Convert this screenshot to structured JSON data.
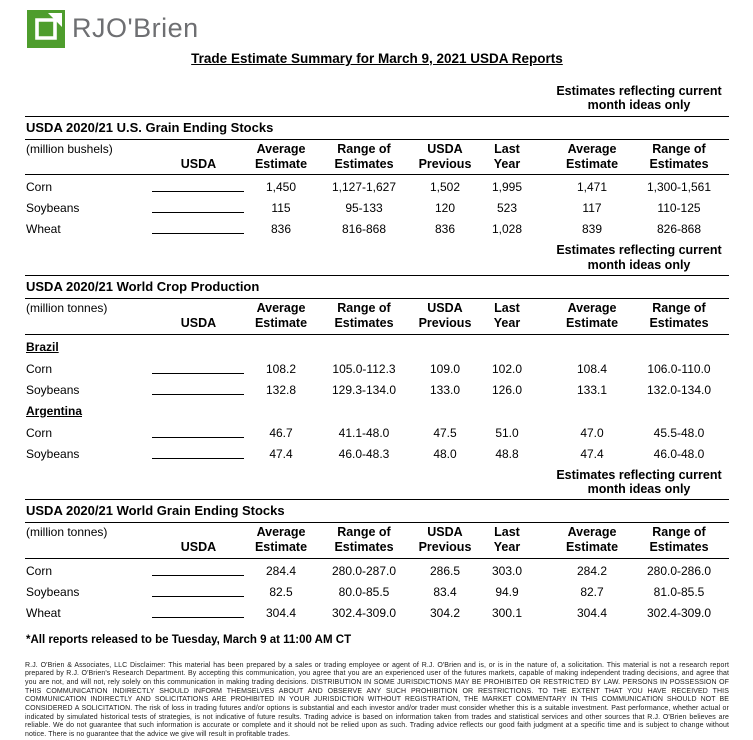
{
  "brand": {
    "name": "RJO'Brien",
    "logo_color": "#4e9d2d"
  },
  "title": "Trade Estimate Summary for March 9, 2021 USDA Reports",
  "current_month_header": [
    "Estimates reflecting current",
    "month ideas only"
  ],
  "main_headers": {
    "usda": "USDA",
    "cols": [
      [
        "Average",
        "Estimate"
      ],
      [
        "Range of",
        "Estimates"
      ],
      [
        "USDA",
        "Previous"
      ],
      [
        "Last",
        "Year"
      ]
    ]
  },
  "current_headers": [
    [
      "Average",
      "Estimate"
    ],
    [
      "Range of",
      "Estimates"
    ]
  ],
  "tables": [
    {
      "title": "USDA 2020/21 U.S. Grain Ending Stocks",
      "unit": "(million bushels)",
      "groups": [
        {
          "name": null,
          "rows": [
            {
              "label": "Corn",
              "avg": "1,450",
              "range": "1,127-1,627",
              "prev": "1,502",
              "last": "1,995",
              "cur_avg": "1,471",
              "cur_range": "1,300-1,561"
            },
            {
              "label": "Soybeans",
              "avg": "115",
              "range": "95-133",
              "prev": "120",
              "last": "523",
              "cur_avg": "117",
              "cur_range": "110-125"
            },
            {
              "label": "Wheat",
              "avg": "836",
              "range": "816-868",
              "prev": "836",
              "last": "1,028",
              "cur_avg": "839",
              "cur_range": "826-868"
            }
          ]
        }
      ]
    },
    {
      "title": "USDA 2020/21 World Crop Production",
      "unit": "(million tonnes)",
      "groups": [
        {
          "name": "Brazil",
          "rows": [
            {
              "label": "Corn",
              "avg": "108.2",
              "range": "105.0-112.3",
              "prev": "109.0",
              "last": "102.0",
              "cur_avg": "108.4",
              "cur_range": "106.0-110.0"
            },
            {
              "label": "Soybeans",
              "avg": "132.8",
              "range": "129.3-134.0",
              "prev": "133.0",
              "last": "126.0",
              "cur_avg": "133.1",
              "cur_range": "132.0-134.0"
            }
          ]
        },
        {
          "name": "Argentina",
          "rows": [
            {
              "label": "Corn",
              "avg": "46.7",
              "range": "41.1-48.0",
              "prev": "47.5",
              "last": "51.0",
              "cur_avg": "47.0",
              "cur_range": "45.5-48.0"
            },
            {
              "label": "Soybeans",
              "avg": "47.4",
              "range": "46.0-48.3",
              "prev": "48.0",
              "last": "48.8",
              "cur_avg": "47.4",
              "cur_range": "46.0-48.0"
            }
          ]
        }
      ]
    },
    {
      "title": "USDA 2020/21 World Grain Ending Stocks",
      "unit": "(million tonnes)",
      "groups": [
        {
          "name": null,
          "rows": [
            {
              "label": "Corn",
              "avg": "284.4",
              "range": "280.0-287.0",
              "prev": "286.5",
              "last": "303.0",
              "cur_avg": "284.2",
              "cur_range": "280.0-286.0"
            },
            {
              "label": "Soybeans",
              "avg": "82.5",
              "range": "80.0-85.5",
              "prev": "83.4",
              "last": "94.9",
              "cur_avg": "82.7",
              "cur_range": "81.0-85.5"
            },
            {
              "label": "Wheat",
              "avg": "304.4",
              "range": "302.4-309.0",
              "prev": "304.2",
              "last": "300.1",
              "cur_avg": "304.4",
              "cur_range": "302.4-309.0"
            }
          ]
        }
      ]
    }
  ],
  "footnote": "*All reports released to be Tuesday, March 9 at 11:00 AM CT",
  "disclaimer": "R.J. O'Brien & Associates, LLC Disclaimer: This material has been prepared by a sales or trading employee or agent of R.J. O'Brien and is, or is in the nature of, a solicitation. This material is not a research report prepared by R.J. O'Brien's Research Department. By accepting this communication, you agree that you are an experienced user of the futures markets, capable of making independent trading decisions, and agree that you are not, and will not, rely solely on this communication in making trading decisions. DISTRIBUTION IN SOME JURISDICTIONS MAY BE PROHIBITED OR RESTRICTED BY LAW. PERSONS IN POSSESSION OF THIS COMMUNICATION INDIRECTLY SHOULD INFORM THEMSELVES ABOUT AND OBSERVE ANY SUCH PROHIBITION OR RESTRICTIONS. TO THE EXTENT THAT YOU HAVE RECEIVED THIS COMMUNICATION INDIRECTLY AND SOLICITATIONS ARE PROHIBITED IN YOUR JURISDICTION WITHOUT REGISTRATION, THE MARKET COMMENTARY IN THIS COMMUNICATION SHOULD NOT BE CONSIDERED A SOLICITATION. The risk of loss in trading futures and/or options is substantial and each investor and/or trader must consider whether this is a suitable investment. Past performance, whether actual or indicated by simulated historical tests of strategies, is not indicative of future results. Trading advice is based on information taken from trades and statistical services and other sources that R.J. O'Brien believes are reliable. We do not guarantee that such information is accurate or complete and it should not be relied upon as such. Trading advice reflects our good faith judgment at a specific time and is subject to change without notice. There is no guarantee that the advice we give will result in profitable trades."
}
